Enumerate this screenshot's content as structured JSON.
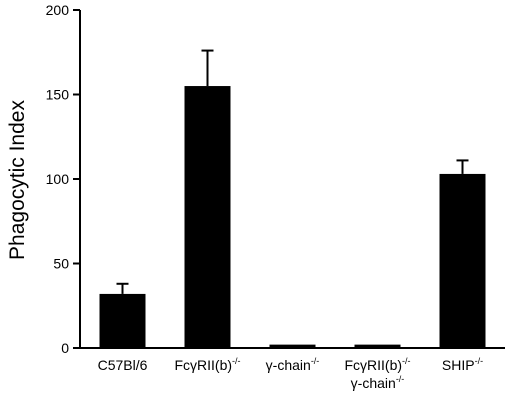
{
  "chart_data": {
    "type": "bar",
    "ylabel": "Phagocytic Index",
    "ylim": [
      0,
      200
    ],
    "yticks": [
      0,
      50,
      100,
      150,
      200
    ],
    "categories": [
      {
        "lines": [
          {
            "text": "C57Bl/6",
            "sup": ""
          }
        ]
      },
      {
        "lines": [
          {
            "text": "FcγRII(b)",
            "sup": "-/-"
          }
        ]
      },
      {
        "lines": [
          {
            "text": "γ-chain",
            "sup": "-/-"
          }
        ]
      },
      {
        "lines": [
          {
            "text": "FcγRII(b)",
            "sup": "-/-"
          },
          {
            "text": "γ-chain",
            "sup": "-/-"
          }
        ]
      },
      {
        "lines": [
          {
            "text": "SHIP",
            "sup": "-/-"
          }
        ]
      }
    ],
    "values": [
      32,
      155,
      2,
      2,
      103
    ],
    "errors": [
      6,
      21,
      0.5,
      0.5,
      8
    ],
    "bar_color": "#000000"
  }
}
